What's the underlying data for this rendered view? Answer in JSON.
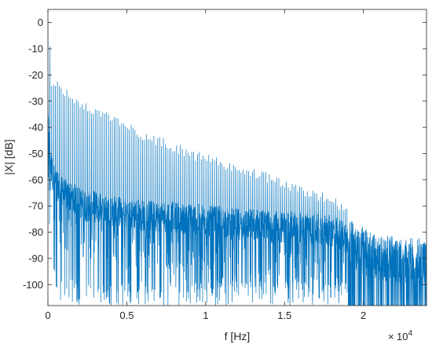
{
  "chart_data": {
    "type": "line",
    "title": "",
    "xlabel": "f [Hz]",
    "ylabel": "|X| [dB]",
    "x_scale_note": {
      "base": "10",
      "exponent": "4"
    },
    "xlim": [
      0,
      24000
    ],
    "ylim": [
      -108,
      5
    ],
    "x_ticks": [
      {
        "value": 0,
        "label": "0"
      },
      {
        "value": 5000,
        "label": "0.5"
      },
      {
        "value": 10000,
        "label": "1"
      },
      {
        "value": 15000,
        "label": "1.5"
      },
      {
        "value": 20000,
        "label": "2"
      }
    ],
    "y_ticks": [
      {
        "value": 0,
        "label": "0"
      },
      {
        "value": -10,
        "label": "-10"
      },
      {
        "value": -20,
        "label": "-20"
      },
      {
        "value": -30,
        "label": "-30"
      },
      {
        "value": -40,
        "label": "-40"
      },
      {
        "value": -50,
        "label": "-50"
      },
      {
        "value": -60,
        "label": "-60"
      },
      {
        "value": -70,
        "label": "-70"
      },
      {
        "value": -80,
        "label": "-80"
      },
      {
        "value": -90,
        "label": "-90"
      },
      {
        "value": -100,
        "label": "-100"
      }
    ],
    "grid": false,
    "series": [
      {
        "color": "#0072BD",
        "x": [
          0,
          80,
          200,
          380,
          600,
          900,
          1200,
          1500,
          1900,
          2300,
          2800,
          3300,
          3800,
          4400,
          5000,
          5600,
          6300,
          7000,
          7800,
          8600,
          9400,
          10200,
          11000,
          11800,
          12600,
          13400,
          14200,
          15000,
          15800,
          16600,
          17400,
          18200,
          18900,
          19500,
          20200,
          21000,
          21800,
          22600,
          23400,
          24000
        ],
        "peaks": [
          2,
          -2,
          -22,
          -25,
          -24,
          -25,
          -27,
          -29,
          -30,
          -32,
          -33,
          -35,
          -36,
          -38,
          -40,
          -42,
          -44,
          -45,
          -47,
          -49,
          -51,
          -52,
          -54,
          -56,
          -57,
          -58,
          -60,
          -62,
          -64,
          -65,
          -67,
          -69,
          -71,
          -73,
          -75,
          -77,
          -79,
          -81,
          -83,
          -84
        ],
        "floor": [
          -35,
          -45,
          -55,
          -60,
          -62,
          -65,
          -66,
          -67,
          -68,
          -70,
          -70,
          -71,
          -72,
          -72,
          -73,
          -73,
          -74,
          -74,
          -74,
          -75,
          -75,
          -76,
          -76,
          -77,
          -77,
          -77,
          -78,
          -78,
          -78,
          -79,
          -79,
          -80,
          -82,
          -85,
          -88,
          -90,
          -90,
          -91,
          -91,
          -92
        ],
        "dips": [
          -60,
          -80,
          -90,
          -100,
          -105,
          -108,
          -108,
          -108,
          -108,
          -108,
          -108,
          -108,
          -108,
          -108,
          -108,
          -108,
          -108,
          -108,
          -108,
          -108,
          -108,
          -108,
          -108,
          -108,
          -108,
          -108,
          -108,
          -108,
          -108,
          -108,
          -108,
          -108,
          -108,
          -108,
          -108,
          -108,
          -108,
          -108,
          -108,
          -108
        ]
      }
    ]
  }
}
